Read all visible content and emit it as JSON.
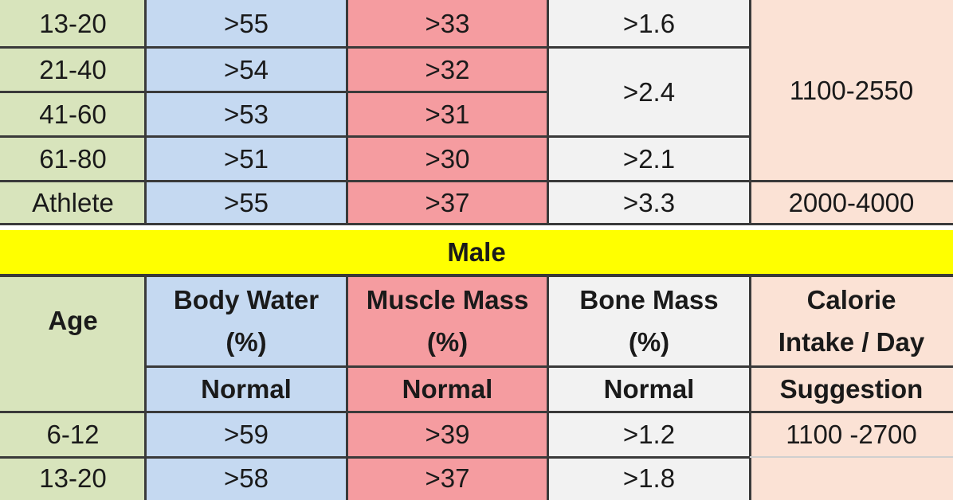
{
  "female_rows": [
    {
      "age": "13-20",
      "water": ">55",
      "muscle": ">33",
      "bone": ">1.6"
    },
    {
      "age": "21-40",
      "water": ">54",
      "muscle": ">32",
      "bone": ">2.4"
    },
    {
      "age": "41-60",
      "water": ">53",
      "muscle": ">31",
      "bone": ""
    },
    {
      "age": "61-80",
      "water": ">51",
      "muscle": ">30",
      "bone": ">2.1"
    },
    {
      "age": "Athlete",
      "water": ">55",
      "muscle": ">37",
      "bone": ">3.3"
    }
  ],
  "female_calorie_1": "1100-2550",
  "female_calorie_2": "2000-4000",
  "male_section": {
    "title": "Male",
    "headers": {
      "age": "Age",
      "water_1": "Body Water",
      "water_2": "(%)",
      "muscle_1": "Muscle Mass",
      "muscle_2": "(%)",
      "bone_1": "Bone Mass",
      "bone_2": "(%)",
      "calorie_1": "Calorie",
      "calorie_2": "Intake / Day"
    },
    "subheaders": {
      "water": "Normal",
      "muscle": "Normal",
      "bone": "Normal",
      "calorie": "Suggestion"
    },
    "rows": [
      {
        "age": "6-12",
        "water": ">59",
        "muscle": ">39",
        "bone": ">1.2",
        "calorie": "1100 -2700"
      },
      {
        "age": "13-20",
        "water": ">58",
        "muscle": ">37",
        "bone": ">1.8",
        "calorie": ""
      }
    ]
  },
  "colors": {
    "age": "#d8e4bc",
    "water": "#c5d9f1",
    "muscle": "#f59ca0",
    "bone": "#f2f2f2",
    "calorie": "#fbe2d5",
    "title_bar": "#ffff00"
  }
}
